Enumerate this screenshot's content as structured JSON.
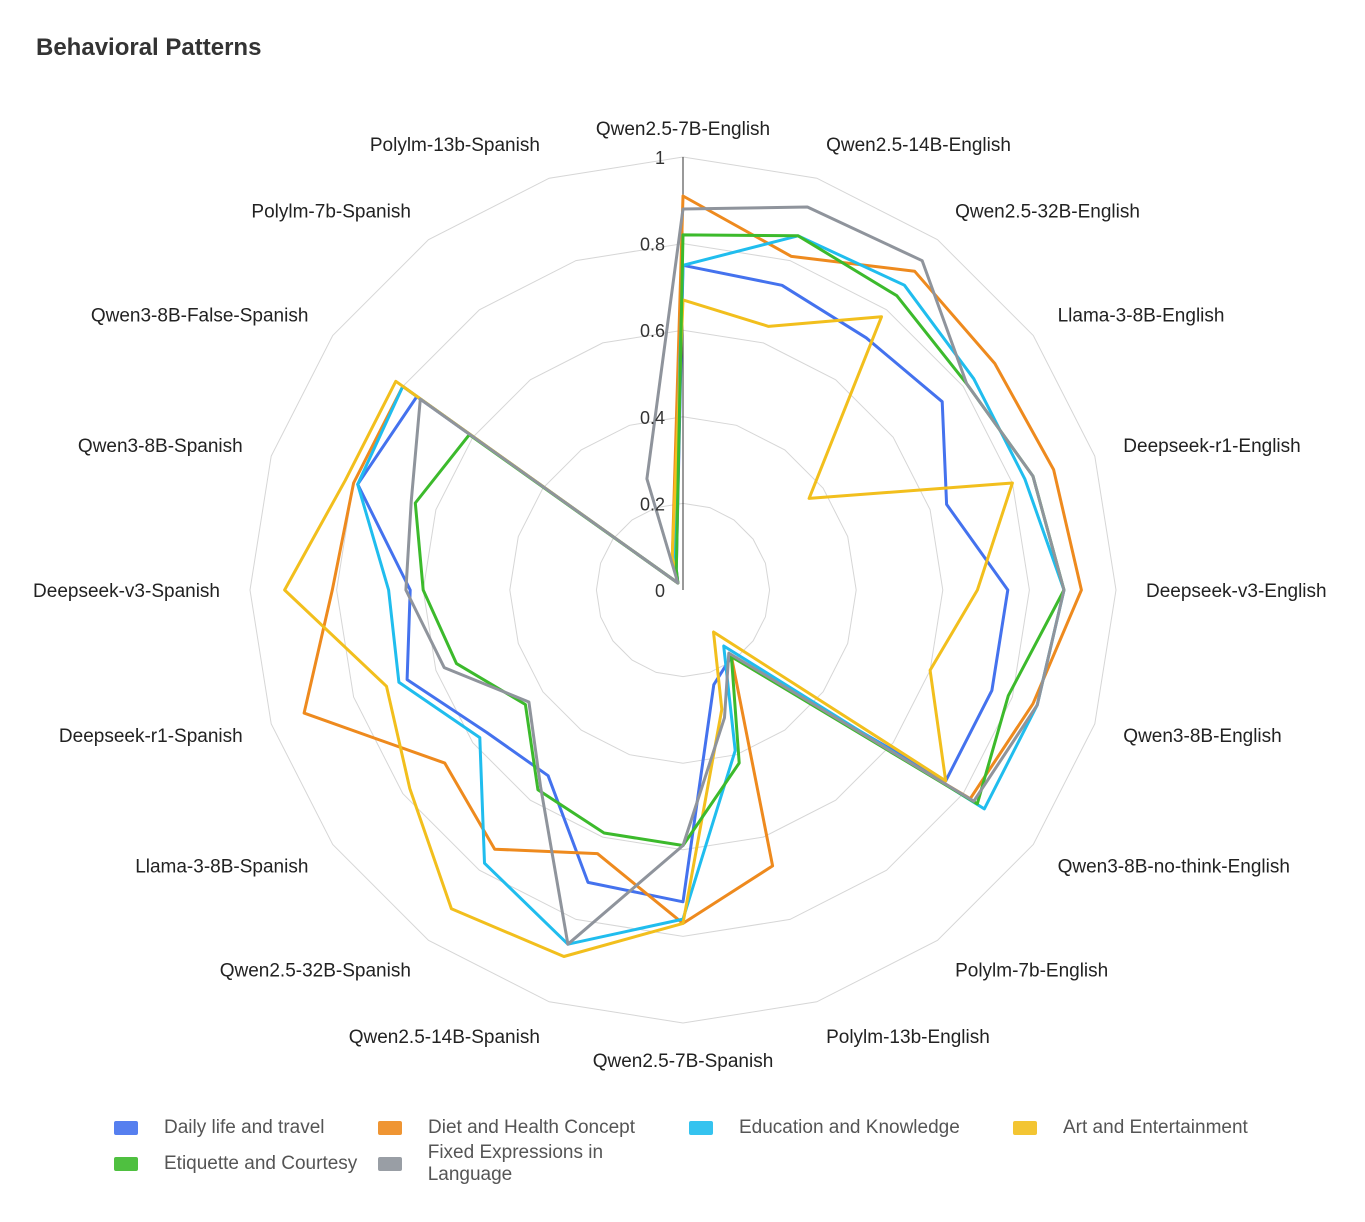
{
  "chart_data": {
    "type": "radar",
    "title": "Behavioral Patterns",
    "axes": [
      "Qwen2.5-7B-English",
      "Qwen2.5-14B-English",
      "Qwen2.5-32B-English",
      "Llama-3-8B-English",
      "Deepseek-r1-English",
      "Deepseek-v3-English",
      "Qwen3-8B-English",
      "Qwen3-8B-no-think-English",
      "Polylm-7b-English",
      "Polylm-13b-English",
      "Qwen2.5-7B-Spanish",
      "Qwen2.5-14B-Spanish",
      "Qwen2.5-32B-Spanish",
      "Llama-3-8B-Spanish",
      "Deepseek-r1-Spanish",
      "Deepseek-v3-Spanish",
      "Qwen3-8B-Spanish",
      "Qwen3-8B-False-Spanish",
      "Polylm-7b-Spanish",
      "Polylm-13b-Spanish"
    ],
    "radial_ticks": [
      "0",
      "0.2",
      "0.4",
      "0.6",
      "0.8",
      "1"
    ],
    "rlim": [
      0,
      1
    ],
    "grid": true,
    "legend_position": "bottom",
    "series": [
      {
        "name": "Daily life and travel",
        "color": "#4472ee",
        "values": [
          0.75,
          0.74,
          0.72,
          0.74,
          0.64,
          0.75,
          0.75,
          0.75,
          0.19,
          0.23,
          0.72,
          0.71,
          0.53,
          0.56,
          0.67,
          0.63,
          0.79,
          0.76,
          0.02,
          0.05
        ]
      },
      {
        "name": "Diet and Health Concept",
        "color": "#ee8a1e",
        "values": [
          0.91,
          0.81,
          0.91,
          0.89,
          0.9,
          0.92,
          0.85,
          0.82,
          0.19,
          0.67,
          0.77,
          0.64,
          0.74,
          0.68,
          0.92,
          0.81,
          0.8,
          0.8,
          0.02,
          0.08
        ]
      },
      {
        "name": "Education and Knowledge",
        "color": "#20bdee",
        "values": [
          0.75,
          0.86,
          0.87,
          0.83,
          0.83,
          0.88,
          0.86,
          0.86,
          0.16,
          0.39,
          0.76,
          0.86,
          0.78,
          0.58,
          0.69,
          0.68,
          0.79,
          0.8,
          0.02,
          0.07
        ]
      },
      {
        "name": "Art and Entertainment",
        "color": "#f2bf1d",
        "values": [
          0.67,
          0.64,
          0.78,
          0.36,
          0.8,
          0.68,
          0.6,
          0.75,
          0.12,
          0.29,
          0.77,
          0.89,
          0.91,
          0.78,
          0.72,
          0.92,
          0.82,
          0.82,
          0.02,
          0.08
        ]
      },
      {
        "name": "Etiquette and Courtesy",
        "color": "#3cba2c",
        "values": [
          0.82,
          0.86,
          0.84,
          0.81,
          0.85,
          0.88,
          0.79,
          0.84,
          0.19,
          0.42,
          0.59,
          0.59,
          0.57,
          0.45,
          0.55,
          0.6,
          0.65,
          0.61,
          0.02,
          0.05
        ]
      },
      {
        "name": "Fixed Expressions in Language",
        "color": "#8f949c",
        "values": [
          0.88,
          0.93,
          0.94,
          0.81,
          0.85,
          0.88,
          0.86,
          0.83,
          0.18,
          0.31,
          0.59,
          0.86,
          0.56,
          0.44,
          0.58,
          0.64,
          0.66,
          0.75,
          0.02,
          0.27
        ]
      }
    ]
  }
}
